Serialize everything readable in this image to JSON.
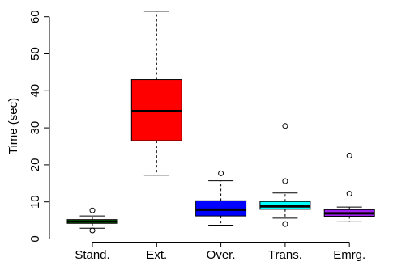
{
  "chart_data": {
    "type": "boxplot",
    "title": "",
    "xlabel": "",
    "ylabel": "Time (sec)",
    "ylim": [
      0,
      64
    ],
    "yticks": [
      0,
      10,
      20,
      30,
      40,
      50,
      60
    ],
    "grid": false,
    "categories": [
      "Stand.",
      "Ext.",
      "Over.",
      "Trans.",
      "Emrg."
    ],
    "boxes": [
      {
        "category": "Stand.",
        "color": "#00cc00",
        "whisker_low": 2.9,
        "q1": 4.2,
        "median": 4.7,
        "q3": 5.2,
        "whisker_high": 6.2,
        "outliers": [
          2.3,
          7.7
        ]
      },
      {
        "category": "Ext.",
        "color": "#ff0000",
        "whisker_low": 17.2,
        "q1": 26.5,
        "median": 34.5,
        "q3": 43.0,
        "whisker_high": 61.5,
        "outliers": []
      },
      {
        "category": "Over.",
        "color": "#0000ff",
        "whisker_low": 3.7,
        "q1": 6.2,
        "median": 7.9,
        "q3": 10.3,
        "whisker_high": 15.7,
        "outliers": [
          17.7
        ]
      },
      {
        "category": "Trans.",
        "color": "#00ffff",
        "whisker_low": 5.6,
        "q1": 8.0,
        "median": 8.8,
        "q3": 10.1,
        "whisker_high": 12.4,
        "outliers": [
          4.0,
          15.6,
          30.5
        ]
      },
      {
        "category": "Emrg.",
        "color": "#a020f0",
        "whisker_low": 4.6,
        "q1": 6.1,
        "median": 6.9,
        "q3": 7.9,
        "whisker_high": 8.6,
        "outliers": [
          12.2,
          22.5
        ]
      }
    ]
  }
}
